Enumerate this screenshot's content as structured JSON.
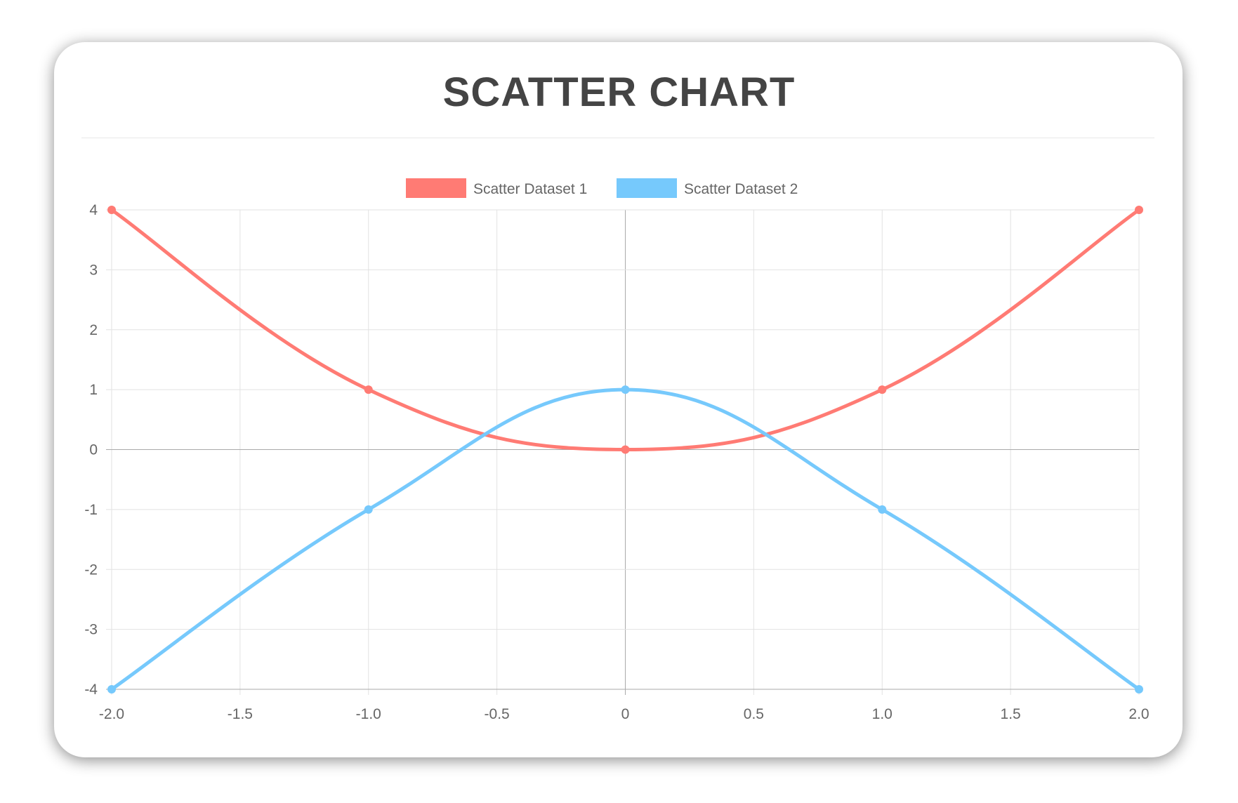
{
  "chart_data": {
    "type": "scatter",
    "title": "SCATTER CHART",
    "xlim": [
      -2,
      2
    ],
    "ylim": [
      -4,
      4
    ],
    "x_ticks": [
      "-2.0",
      "-1.5",
      "-1.0",
      "-0.5",
      "0",
      "0.5",
      "1.0",
      "1.5",
      "2.0"
    ],
    "y_ticks": [
      "4",
      "3",
      "2",
      "1",
      "0",
      "-1",
      "-2",
      "-3",
      "-4"
    ],
    "grid": true,
    "legend_position": "top",
    "show_line": true,
    "smooth": true,
    "series": [
      {
        "name": "Scatter Dataset 1",
        "color": "#ff7b74",
        "points": [
          [
            -2,
            4
          ],
          [
            -1,
            1
          ],
          [
            0,
            0
          ],
          [
            1,
            1
          ],
          [
            2,
            4
          ]
        ]
      },
      {
        "name": "Scatter Dataset 2",
        "color": "#76c9fc",
        "points": [
          [
            -2,
            -4
          ],
          [
            -1,
            -1
          ],
          [
            0,
            1
          ],
          [
            1,
            -1
          ],
          [
            2,
            -4
          ]
        ]
      }
    ]
  }
}
